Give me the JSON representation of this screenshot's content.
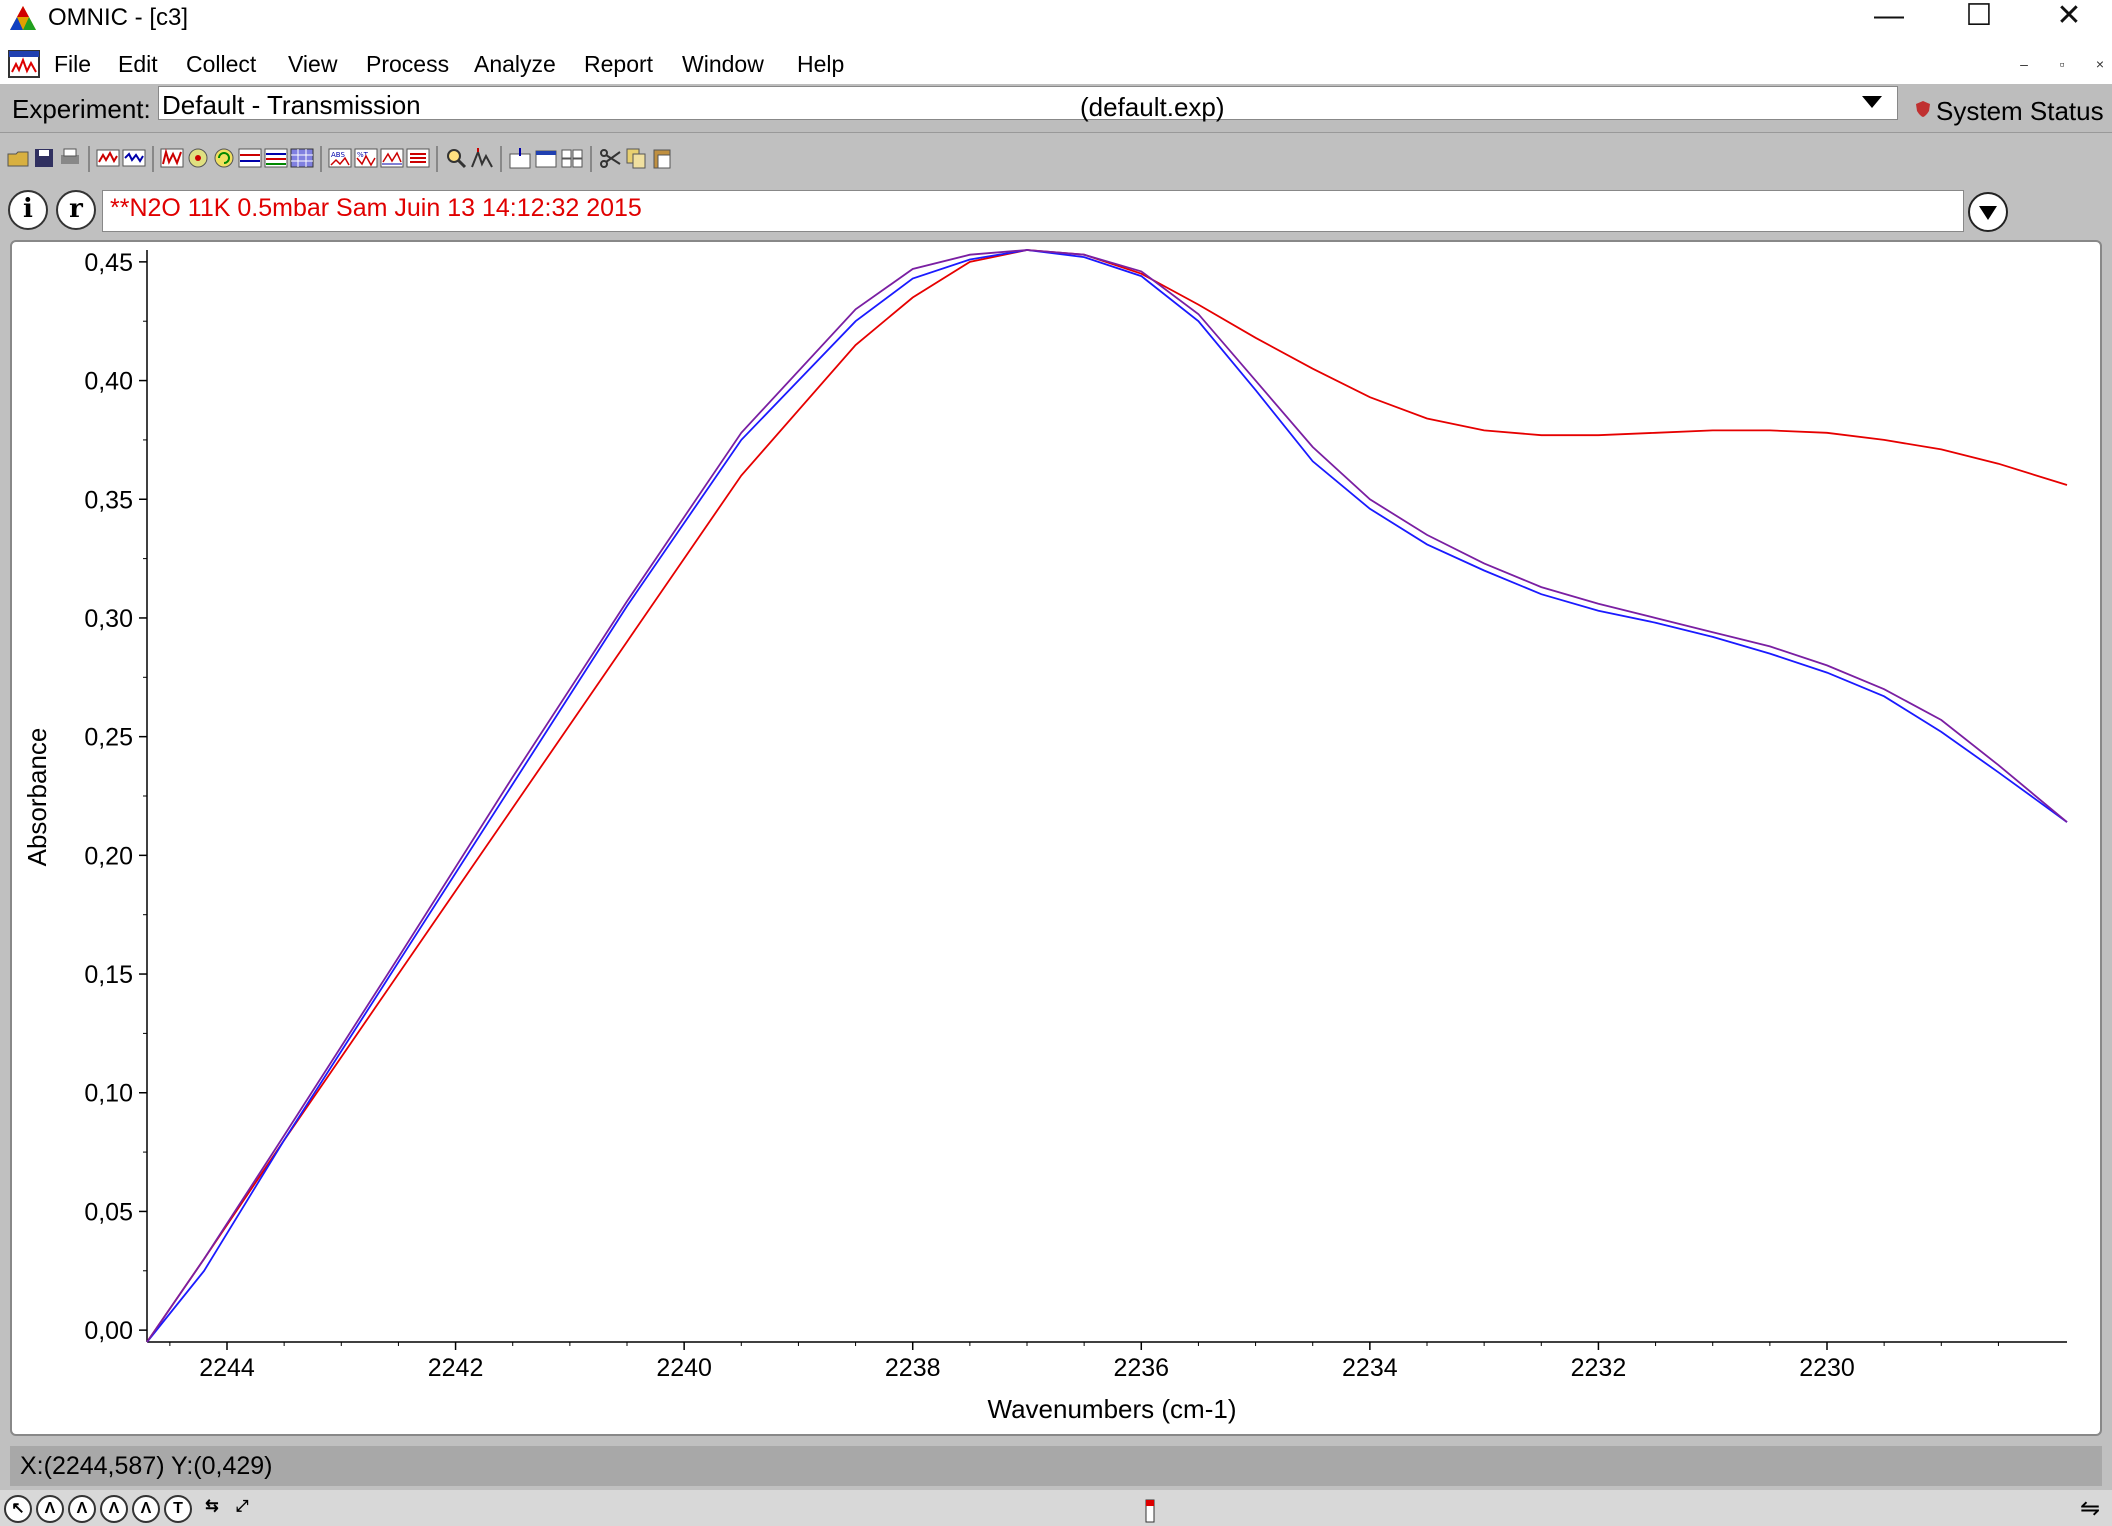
{
  "window": {
    "title": "OMNIC - [c3]",
    "minimize": "—",
    "maximize": "☐",
    "close": "✕"
  },
  "menu": {
    "items": [
      "File",
      "Edit",
      "Collect",
      "View",
      "Process",
      "Analyze",
      "Report",
      "Window",
      "Help"
    ]
  },
  "experiment": {
    "label": "Experiment:",
    "name": "Default - Transmission",
    "file": "(default.exp)"
  },
  "system_status": "System Status",
  "spectrum_title": "**N2O 11K 0.5mbar Sam Juin 13 14:12:32 2015",
  "info_buttons": [
    "i",
    "r"
  ],
  "status": {
    "coordinates": "X:(2244,587) Y:(0,429)"
  },
  "colors": {
    "red_series": "#e60000",
    "blue_series": "#1a1aff",
    "purple_series": "#7a1fa2"
  },
  "chart_data": {
    "type": "line",
    "xlabel": "Wavenumbers (cm-1)",
    "ylabel": "Absorbance",
    "xlim": [
      2244.7,
      2227.9
    ],
    "ylim": [
      -0.005,
      0.455
    ],
    "x_ticks": [
      2244,
      2242,
      2240,
      2238,
      2236,
      2234,
      2232,
      2230
    ],
    "x_tick_labels": [
      "2244",
      "2242",
      "2240",
      "2238",
      "2236",
      "2234",
      "2232",
      "2230"
    ],
    "y_ticks": [
      0.0,
      0.05,
      0.1,
      0.15,
      0.2,
      0.25,
      0.3,
      0.35,
      0.4,
      0.45
    ],
    "y_tick_labels": [
      "0,00",
      "0,05",
      "0,10",
      "0,15",
      "0,20",
      "0,25",
      "0,30",
      "0,35",
      "0,40",
      "0,45"
    ],
    "series": [
      {
        "color": "red",
        "x": [
          2244.7,
          2244.2,
          2243.5,
          2242.5,
          2241.5,
          2240.5,
          2239.5,
          2238.5,
          2238.0,
          2237.5,
          2237.0,
          2236.5,
          2236.0,
          2235.5,
          2235.0,
          2234.5,
          2234.0,
          2233.5,
          2233.0,
          2232.5,
          2232.0,
          2231.5,
          2231.0,
          2230.5,
          2230.0,
          2229.5,
          2229.0,
          2228.5,
          2227.9
        ],
        "y": [
          -0.005,
          0.03,
          0.08,
          0.15,
          0.22,
          0.29,
          0.36,
          0.415,
          0.435,
          0.45,
          0.455,
          0.453,
          0.445,
          0.432,
          0.418,
          0.405,
          0.393,
          0.384,
          0.379,
          0.377,
          0.377,
          0.378,
          0.379,
          0.379,
          0.378,
          0.375,
          0.371,
          0.365,
          0.356
        ]
      },
      {
        "color": "blue",
        "x": [
          2244.7,
          2244.2,
          2243.5,
          2242.5,
          2241.5,
          2240.5,
          2239.5,
          2238.5,
          2238.0,
          2237.5,
          2237.0,
          2236.5,
          2236.0,
          2235.5,
          2235.0,
          2234.5,
          2234.0,
          2233.5,
          2233.0,
          2232.5,
          2232.0,
          2231.5,
          2231.0,
          2230.5,
          2230.0,
          2229.5,
          2229.0,
          2228.5,
          2227.9
        ],
        "y": [
          -0.005,
          0.025,
          0.08,
          0.155,
          0.23,
          0.305,
          0.375,
          0.425,
          0.443,
          0.451,
          0.455,
          0.452,
          0.444,
          0.425,
          0.396,
          0.366,
          0.346,
          0.331,
          0.32,
          0.31,
          0.303,
          0.298,
          0.292,
          0.285,
          0.277,
          0.267,
          0.252,
          0.235,
          0.214
        ]
      },
      {
        "color": "purple",
        "x": [
          2244.7,
          2244.2,
          2243.5,
          2242.5,
          2241.5,
          2240.5,
          2239.5,
          2238.5,
          2238.0,
          2237.5,
          2237.0,
          2236.5,
          2236.0,
          2235.5,
          2235.0,
          2234.5,
          2234.0,
          2233.5,
          2233.0,
          2232.5,
          2232.0,
          2231.5,
          2231.0,
          2230.5,
          2230.0,
          2229.5,
          2229.0,
          2228.5,
          2227.9
        ],
        "y": [
          -0.005,
          0.03,
          0.082,
          0.157,
          0.233,
          0.307,
          0.378,
          0.43,
          0.447,
          0.453,
          0.455,
          0.453,
          0.446,
          0.428,
          0.4,
          0.372,
          0.35,
          0.335,
          0.323,
          0.313,
          0.306,
          0.3,
          0.294,
          0.288,
          0.28,
          0.27,
          0.257,
          0.238,
          0.214
        ]
      }
    ]
  }
}
